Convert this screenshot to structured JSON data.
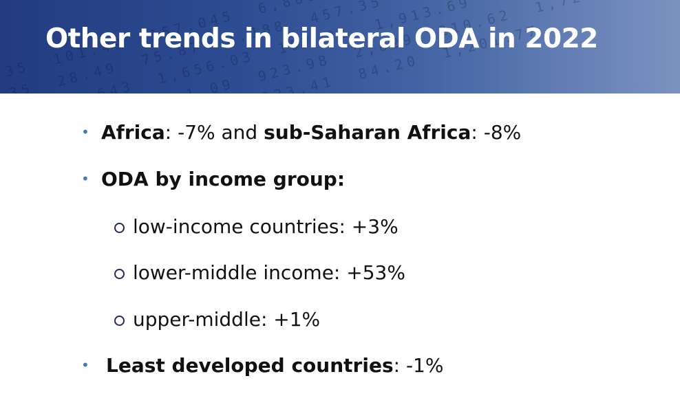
{
  "slide": {
    "title": "Other trends in bilateral ODA in 2022"
  },
  "bullets": {
    "africa": {
      "label1": "Africa",
      "value1": ": -7% and ",
      "label2": "sub-Saharan Africa",
      "value2": ": -8%"
    },
    "income_group": {
      "label": "ODA by income group:"
    },
    "sub_items": [
      {
        "text": "low-income countries: +3%"
      },
      {
        "text": "lower-middle income: +53%"
      },
      {
        "text": "upper-middle: +1%"
      }
    ],
    "ldc": {
      "label": "Least developed countries",
      "value": ": -1%"
    }
  },
  "colors": {
    "banner": "#2d4c92",
    "bullet_dot": "#3e78bf",
    "sub_ring": "#222a55",
    "text": "#111111"
  }
}
